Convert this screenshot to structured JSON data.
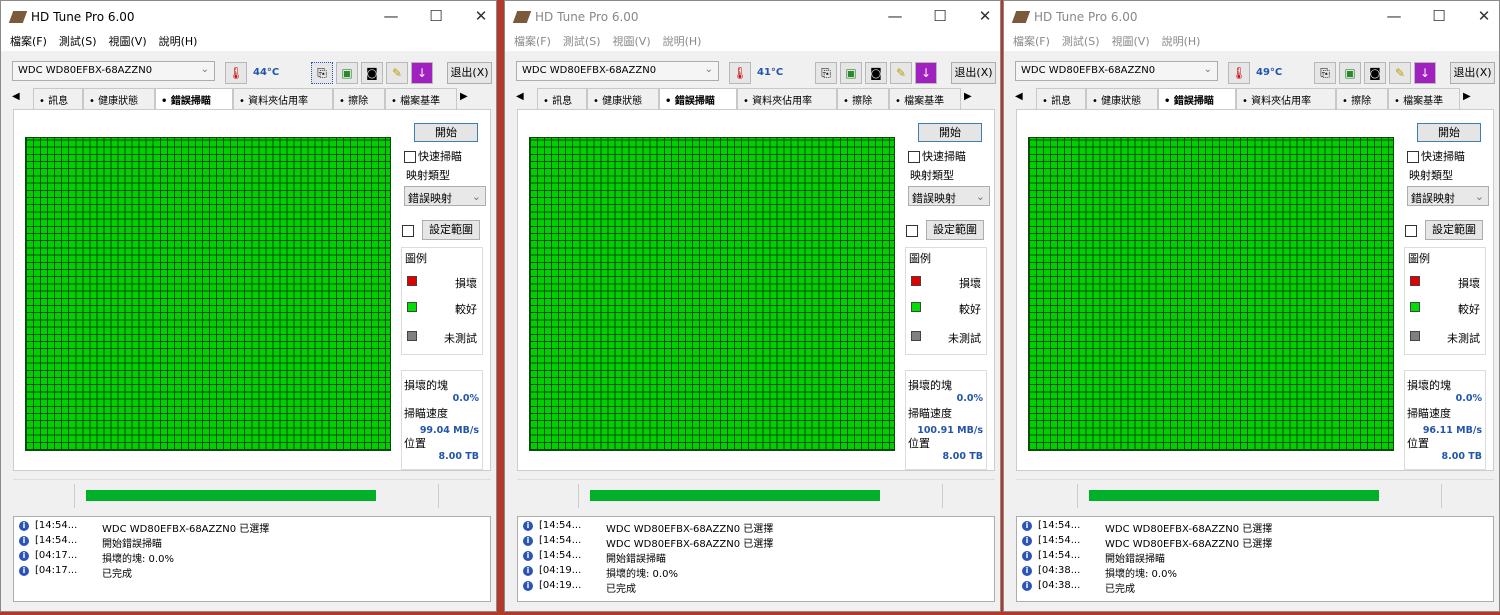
{
  "colors": {
    "grid_ok": "#00d000",
    "progress": "#00b028",
    "value_text": "#2255aa",
    "damaged": "#e00000",
    "good": "#00e000",
    "untested": "#808080"
  },
  "common": {
    "title": "HD Tune Pro 6.00",
    "menu": [
      "檔案(F)",
      "測試(S)",
      "視圖(V)",
      "說明(H)"
    ],
    "drive": "WDC WD80EFBX-68AZZN0",
    "exit": "退出(X)",
    "tabs": [
      {
        "icon": "info-icon",
        "label": "訊息"
      },
      {
        "icon": "health-cross-icon",
        "label": "健康狀態"
      },
      {
        "icon": "magnifier-icon",
        "label": "錯誤掃瞄"
      },
      {
        "icon": "folder-icon",
        "label": "資料夾佔用率"
      },
      {
        "icon": "trash-icon",
        "label": "擦除"
      },
      {
        "icon": "file-benchmark-icon",
        "label": "檔案基準"
      }
    ],
    "start": "開始",
    "quick_scan": "快速掃瞄",
    "map_type_label": "映射類型",
    "map_type_value": "錯誤映射",
    "set_range": "設定範圍",
    "legend_title": "圖例",
    "legend": [
      "損壞",
      "較好",
      "未測試"
    ],
    "damaged_blocks_label": "損壞的塊",
    "scan_speed_label": "掃瞄速度",
    "position_label": "位置",
    "progress_percent": 100
  },
  "windows": [
    {
      "temp": "44°C",
      "damaged": "0.0%",
      "speed": "99.04 MB/s",
      "position": "8.00 TB",
      "active": true,
      "log": [
        [
          "[14:54...",
          "WDC WD80EFBX-68AZZN0 已選擇"
        ],
        [
          "[14:54...",
          "開始錯誤掃瞄"
        ],
        [
          "[04:17...",
          "損壞的塊: 0.0%"
        ],
        [
          "[04:17...",
          "已完成"
        ]
      ]
    },
    {
      "temp": "41°C",
      "damaged": "0.0%",
      "speed": "100.91 MB/s",
      "position": "8.00 TB",
      "active": false,
      "log": [
        [
          "[14:54...",
          "WDC WD80EFBX-68AZZN0 已選擇"
        ],
        [
          "[14:54...",
          "WDC WD80EFBX-68AZZN0 已選擇"
        ],
        [
          "[14:54...",
          "開始錯誤掃瞄"
        ],
        [
          "[04:19...",
          "損壞的塊: 0.0%"
        ],
        [
          "[04:19...",
          "已完成"
        ]
      ]
    },
    {
      "temp": "49°C",
      "damaged": "0.0%",
      "speed": "96.11 MB/s",
      "position": "8.00 TB",
      "active": false,
      "log": [
        [
          "[14:54...",
          "WDC WD80EFBX-68AZZN0 已選擇"
        ],
        [
          "[14:54...",
          "WDC WD80EFBX-68AZZN0 已選擇"
        ],
        [
          "[14:54...",
          "開始錯誤掃瞄"
        ],
        [
          "[04:38...",
          "損壞的塊: 0.0%"
        ],
        [
          "[04:38...",
          "已完成"
        ]
      ]
    }
  ]
}
